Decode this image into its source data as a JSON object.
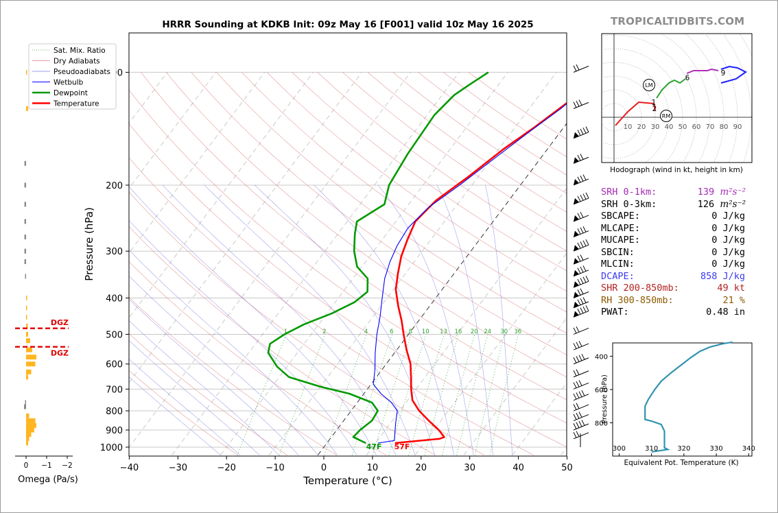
{
  "title": "HRRR Sounding at KDKB Init: 09z May 16 [F001] valid 10z May 16 2025",
  "watermark": "TROPICALTIDBITS.COM",
  "colors": {
    "temperature": "#ff0000",
    "dewpoint": "#009900",
    "wetbulb": "#0000ff",
    "omega": "#ffb622",
    "hodo_0_3": "#e31a1c",
    "hodo_3_6": "#2ca02c",
    "hodo_6_9": "#b02db4",
    "hodo_9_12": "#1f1fff",
    "thetae": "#3193b0",
    "srh01": "#a52ab5",
    "dcape": "#3a3af0",
    "shr": "#b22222",
    "rh": "#8b5a00"
  },
  "chart_data": [
    {
      "type": "line",
      "name": "skew-t",
      "xlabel": "Temperature (°C)",
      "ylabel": "Pressure (hPa)",
      "xlim": [
        -40,
        50
      ],
      "ylim": [
        1050,
        100
      ],
      "yscale": "log",
      "x_ticks": [
        -40,
        -30,
        -20,
        -10,
        0,
        10,
        20,
        30,
        40,
        50
      ],
      "y_ticks": [
        100,
        200,
        300,
        400,
        500,
        600,
        700,
        800,
        900,
        1000
      ],
      "legend": {
        "placement": "top-left",
        "entries": [
          "Sat. Mix. Ratio",
          "Dry Adiabats",
          "Pseudoadiabats",
          "Wetbulb",
          "Dewpoint",
          "Temperature"
        ]
      },
      "mixing_ratio_labels": [
        "1",
        "2",
        "4",
        "6",
        "8",
        "10",
        "13",
        "16",
        "20",
        "24",
        "30",
        "36"
      ],
      "surface_labels": {
        "dewpoint": "47F",
        "temperature": "57F"
      },
      "series": [
        {
          "name": "Temperature",
          "points": [
            [
              14.0,
              975
            ],
            [
              22.5,
              950
            ],
            [
              23.2,
              940
            ],
            [
              21.0,
              900
            ],
            [
              17.5,
              850
            ],
            [
              14.0,
              800
            ],
            [
              11.0,
              750
            ],
            [
              9.0,
              700
            ],
            [
              7.5,
              660
            ],
            [
              5.0,
              600
            ],
            [
              2.0,
              550
            ],
            [
              -1.0,
              500
            ],
            [
              -3.5,
              460
            ],
            [
              -6.5,
              420
            ],
            [
              -9.5,
              380
            ],
            [
              -11.5,
              345
            ],
            [
              -13.5,
              310
            ],
            [
              -14.8,
              280
            ],
            [
              -16.0,
              250
            ],
            [
              -15.0,
              220
            ],
            [
              -12.0,
              190
            ],
            [
              -9.0,
              160
            ],
            [
              -6.0,
              140
            ],
            [
              -3.0,
              120
            ],
            [
              -1.5,
              110
            ],
            [
              0.0,
              100
            ]
          ]
        },
        {
          "name": "Dewpoint",
          "points": [
            [
              8.0,
              975
            ],
            [
              4.5,
              940
            ],
            [
              4.8,
              900
            ],
            [
              5.8,
              850
            ],
            [
              5.5,
              800
            ],
            [
              3.0,
              760
            ],
            [
              -3.0,
              720
            ],
            [
              -10.0,
              690
            ],
            [
              -18.0,
              650
            ],
            [
              -22.0,
              610
            ],
            [
              -26.0,
              560
            ],
            [
              -27.0,
              530
            ],
            [
              -25.5,
              500
            ],
            [
              -23.0,
              470
            ],
            [
              -19.0,
              440
            ],
            [
              -16.0,
              410
            ],
            [
              -15.0,
              385
            ],
            [
              -17.0,
              355
            ],
            [
              -21.0,
              330
            ],
            [
              -24.0,
              300
            ],
            [
              -26.5,
              270
            ],
            [
              -28.0,
              250
            ],
            [
              -25.0,
              225
            ],
            [
              -27.0,
              200
            ],
            [
              -28.0,
              165
            ],
            [
              -28.5,
              130
            ],
            [
              -27.5,
              115
            ],
            [
              -26.0,
              108
            ],
            [
              -24.0,
              100
            ]
          ]
        },
        {
          "name": "Wetbulb",
          "points": [
            [
              10.5,
              975
            ],
            [
              13.5,
              960
            ],
            [
              12.5,
              920
            ],
            [
              11.0,
              860
            ],
            [
              9.5,
              800
            ],
            [
              7.0,
              760
            ],
            [
              3.5,
              720
            ],
            [
              0.5,
              680
            ],
            [
              -1.5,
              620
            ],
            [
              -4.0,
              560
            ],
            [
              -6.5,
              500
            ],
            [
              -8.5,
              450
            ],
            [
              -11.0,
              400
            ],
            [
              -13.5,
              355
            ],
            [
              -15.0,
              320
            ],
            [
              -16.0,
              290
            ],
            [
              -16.5,
              260
            ],
            [
              -15.5,
              230
            ],
            [
              -12.5,
              200
            ],
            [
              -9.5,
              170
            ],
            [
              -6.5,
              145
            ],
            [
              -3.5,
              125
            ],
            [
              -1.5,
              110
            ],
            [
              0.0,
              100
            ]
          ]
        }
      ]
    },
    {
      "type": "bar",
      "name": "omega",
      "xlabel": "Omega (Pa/s)",
      "x_ticks": [
        "0",
        "−1",
        "−2"
      ],
      "dgz_label": "DGZ",
      "dgz_levels_hpa": [
        482,
        540
      ],
      "points": [
        [
          975,
          -0.1
        ],
        [
          950,
          -0.15
        ],
        [
          925,
          -0.25
        ],
        [
          900,
          -0.4
        ],
        [
          875,
          -0.5
        ],
        [
          850,
          -0.45
        ],
        [
          825,
          -0.15
        ],
        [
          780,
          0.1
        ],
        [
          760,
          0.05
        ],
        [
          650,
          -0.1
        ],
        [
          630,
          -0.25
        ],
        [
          600,
          -0.45
        ],
        [
          575,
          -0.5
        ],
        [
          550,
          -0.3
        ],
        [
          520,
          -0.2
        ],
        [
          500,
          -0.1
        ],
        [
          475,
          -0.08
        ],
        [
          450,
          -0.05
        ],
        [
          425,
          -0.05
        ],
        [
          400,
          -0.04
        ],
        [
          350,
          0.05
        ],
        [
          320,
          0.08
        ],
        [
          300,
          0.08
        ],
        [
          275,
          0.08
        ],
        [
          250,
          0.08
        ],
        [
          225,
          0.08
        ],
        [
          200,
          0.08
        ],
        [
          175,
          0.08
        ],
        [
          125,
          -0.1
        ],
        [
          100,
          -0.03
        ]
      ]
    },
    {
      "type": "line",
      "name": "hodograph",
      "caption": "Hodograph (wind in kt, height in km)",
      "ring_labels": [
        "10",
        "20",
        "30",
        "40",
        "50",
        "60",
        "70",
        "80",
        "90"
      ],
      "height_labels": [
        "1",
        "2",
        "6",
        "9"
      ],
      "markers": [
        "LM",
        "RM"
      ],
      "series": [
        {
          "segment": "0-3km",
          "points": [
            [
              1,
              -6
            ],
            [
              10,
              4
            ],
            [
              18,
              11
            ],
            [
              29,
              10
            ],
            [
              30,
              5
            ]
          ]
        },
        {
          "segment": "3-6km",
          "points": [
            [
              31,
              14
            ],
            [
              35,
              20
            ],
            [
              40,
              25
            ],
            [
              44,
              27
            ],
            [
              48,
              25
            ],
            [
              52,
              28
            ]
          ]
        },
        {
          "segment": "6-9km",
          "points": [
            [
              53,
              32
            ],
            [
              58,
              34
            ],
            [
              63,
              34
            ],
            [
              68,
              34
            ],
            [
              71,
              35
            ],
            [
              76,
              34
            ]
          ]
        },
        {
          "segment": "9-12km",
          "points": [
            [
              78,
              35
            ],
            [
              84,
              37
            ],
            [
              90,
              36
            ],
            [
              96,
              33
            ],
            [
              89,
              28
            ],
            [
              78,
              25
            ]
          ]
        }
      ]
    },
    {
      "type": "line",
      "name": "theta-e",
      "xlabel": "Equivalent Pot. Temperature (K)",
      "ylabel": "Pressure (hPa)",
      "xlim": [
        298,
        341
      ],
      "ylim": [
        1000,
        320
      ],
      "x_ticks": [
        300,
        310,
        320,
        330,
        340
      ],
      "y_ticks": [
        400,
        600,
        800
      ],
      "points": [
        [
          310,
          975
        ],
        [
          315,
          960
        ],
        [
          314,
          950
        ],
        [
          314,
          900
        ],
        [
          314,
          850
        ],
        [
          313,
          810
        ],
        [
          310,
          790
        ],
        [
          308,
          780
        ],
        [
          308,
          740
        ],
        [
          308,
          700
        ],
        [
          309,
          660
        ],
        [
          311,
          600
        ],
        [
          313,
          550
        ],
        [
          316,
          500
        ],
        [
          318,
          470
        ],
        [
          320,
          440
        ],
        [
          322,
          410
        ],
        [
          325,
          370
        ],
        [
          328,
          345
        ],
        [
          332,
          325
        ],
        [
          335,
          315
        ]
      ]
    }
  ],
  "stats": [
    {
      "label": "SRH 0-1km:",
      "value": "139 ",
      "unit": "m²s⁻²",
      "color": "#a52ab5"
    },
    {
      "label": "SRH 0-3km:",
      "value": "126 ",
      "unit": "m²s⁻²",
      "color": "#000000"
    },
    {
      "label": "SBCAPE:",
      "value": "0 J/kg",
      "color": "#000000"
    },
    {
      "label": "MLCAPE:",
      "value": "0 J/kg",
      "color": "#000000"
    },
    {
      "label": "MUCAPE:",
      "value": "0 J/kg",
      "color": "#000000"
    },
    {
      "label": "SBCIN:",
      "value": "0 J/kg",
      "color": "#000000"
    },
    {
      "label": "MLCIN:",
      "value": "0 J/kg",
      "color": "#000000"
    },
    {
      "label": "DCAPE:",
      "value": "858 J/kg",
      "color": "#3a3af0"
    },
    {
      "label": "SHR 200-850mb:",
      "value": "49 kt",
      "color": "#b22222"
    },
    {
      "label": "RH 300-850mb:",
      "value": "21 %",
      "color": "#8b5a00"
    },
    {
      "label": "PWAT:",
      "value": "0.48 in",
      "color": "#000000"
    }
  ]
}
